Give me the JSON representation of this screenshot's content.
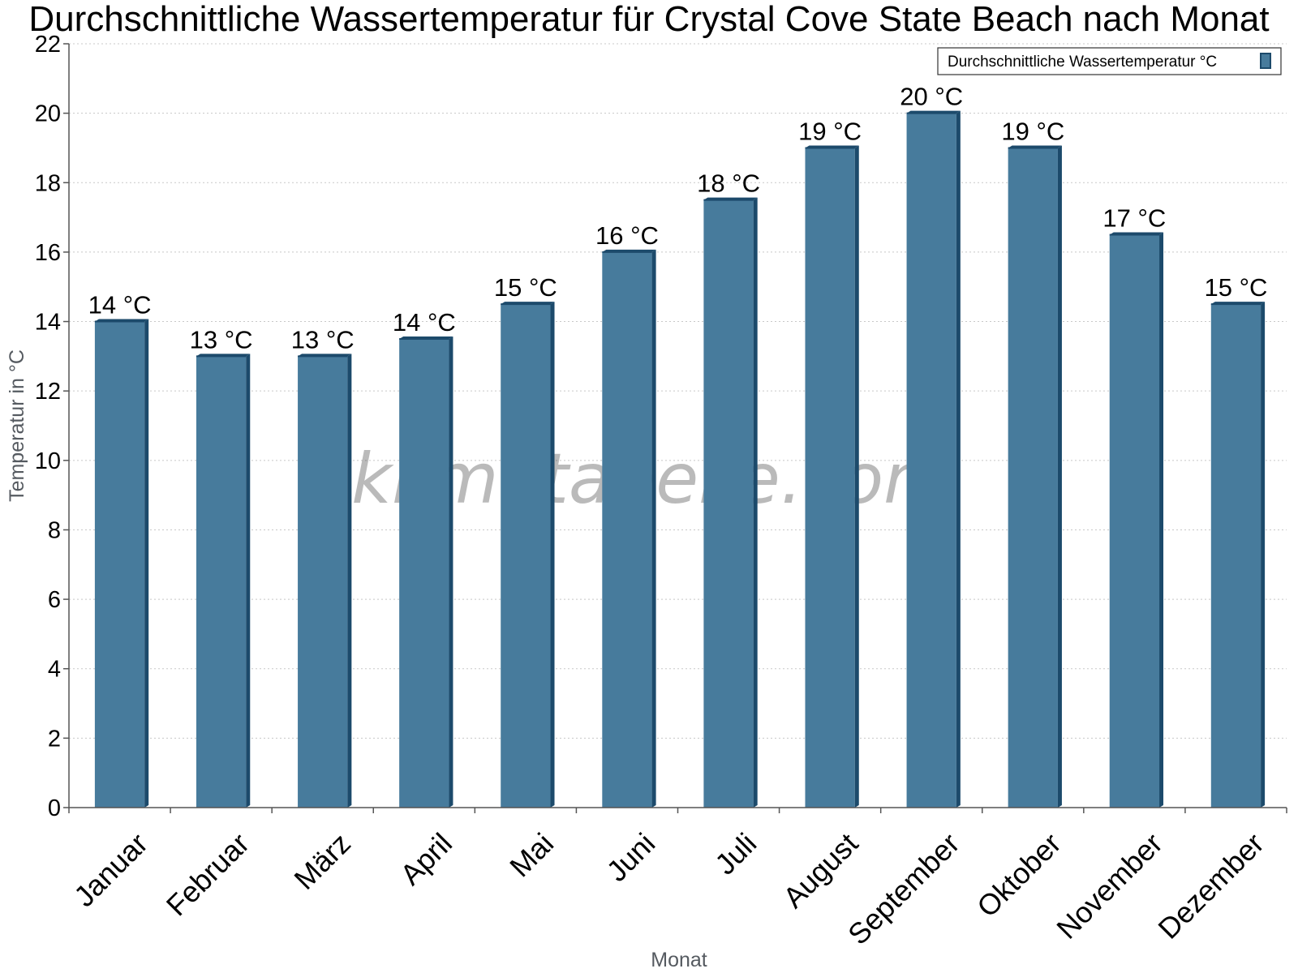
{
  "chart_data": {
    "type": "bar",
    "title": "Durchschnittliche Wassertemperatur für Crystal Cove State Beach nach Monat",
    "xlabel": "Monat",
    "ylabel": "Temperatur in °C",
    "categories": [
      "Januar",
      "Februar",
      "März",
      "April",
      "Mai",
      "Juni",
      "Juli",
      "August",
      "September",
      "Oktober",
      "November",
      "Dezember"
    ],
    "series": [
      {
        "name": "Durchschnittliche Wassertemperatur °C",
        "values": [
          14,
          13,
          13,
          13.5,
          14.5,
          16,
          17.5,
          19,
          20,
          19,
          16.5,
          14.5
        ],
        "labels": [
          "14 °C",
          "13 °C",
          "13 °C",
          "14 °C",
          "15 °C",
          "16 °C",
          "18 °C",
          "19 °C",
          "20 °C",
          "19 °C",
          "17 °C",
          "15 °C"
        ]
      }
    ],
    "ylim": [
      0,
      22
    ],
    "yticks": [
      "0",
      "2",
      "4",
      "6",
      "8",
      "10",
      "12",
      "14",
      "16",
      "18",
      "20",
      "22"
    ],
    "grid": true,
    "legend_position": "top-right",
    "watermark": "klimatabelle.com",
    "colors": {
      "bar_front": "#477b9c",
      "bar_side": "#1c4a6b",
      "bar_top": "#1c4a6b",
      "grid": "#c8c8c8",
      "axis": "#555555"
    }
  }
}
